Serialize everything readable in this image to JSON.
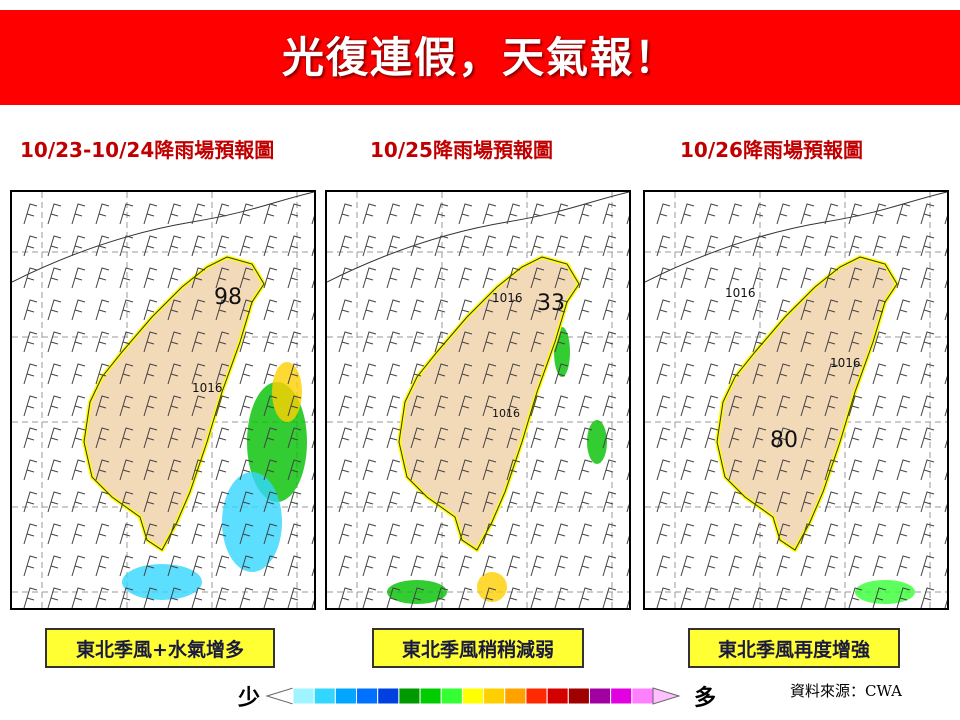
{
  "header": {
    "title": "光復連假，天氣報！"
  },
  "panels": [
    {
      "title": "10/23-10/24降雨場預報圖",
      "caption": "東北季風+水氣增多",
      "labels": [
        "98",
        "1016"
      ]
    },
    {
      "title": "10/25降雨場預報圖",
      "caption": "東北季風稍稍減弱",
      "labels": [
        "1016",
        "33",
        "1016"
      ]
    },
    {
      "title": "10/26降雨場預報圖",
      "caption": "東北季風再度增強",
      "labels": [
        "1016",
        "1016",
        "80"
      ]
    }
  ],
  "legend": {
    "low": "少",
    "high": "多",
    "colors": [
      "#9ff4ff",
      "#33d6ff",
      "#00a6ff",
      "#0070ff",
      "#0040e0",
      "#009900",
      "#00cc00",
      "#33ff33",
      "#ffff00",
      "#ffd000",
      "#ffa200",
      "#ff2a00",
      "#d40000",
      "#a00000",
      "#a000a0",
      "#e000e0",
      "#ff80ff"
    ]
  },
  "source": "資料來源：CWA"
}
